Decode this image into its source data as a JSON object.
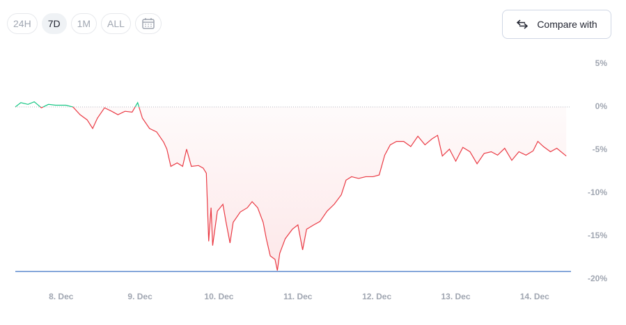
{
  "controls": {
    "ranges": [
      "24H",
      "7D",
      "1M",
      "ALL"
    ],
    "selected": 1,
    "compare": "Compare with"
  },
  "chart_data": {
    "type": "line",
    "x": [
      7.42,
      7.49,
      7.58,
      7.66,
      7.75,
      7.84,
      7.93,
      8.06,
      8.15,
      8.24,
      8.33,
      8.4,
      8.46,
      8.55,
      8.64,
      8.72,
      8.81,
      8.9,
      8.97,
      9.03,
      9.12,
      9.21,
      9.3,
      9.34,
      9.39,
      9.47,
      9.54,
      9.59,
      9.65,
      9.74,
      9.8,
      9.84,
      9.87,
      9.9,
      9.92,
      9.98,
      10.05,
      10.09,
      10.14,
      10.18,
      10.27,
      10.36,
      10.42,
      10.49,
      10.56,
      10.6,
      10.65,
      10.71,
      10.74,
      10.77,
      10.84,
      10.93,
      11.0,
      11.06,
      11.11,
      11.2,
      11.28,
      11.37,
      11.46,
      11.55,
      11.61,
      11.68,
      11.77,
      11.86,
      11.95,
      12.03,
      12.1,
      12.17,
      12.25,
      12.34,
      12.43,
      12.52,
      12.61,
      12.7,
      12.77,
      12.83,
      12.92,
      13.0,
      13.09,
      13.18,
      13.27,
      13.36,
      13.45,
      13.53,
      13.62,
      13.71,
      13.8,
      13.89,
      13.98,
      14.04,
      14.11,
      14.2,
      14.28,
      14.4
    ],
    "series": [
      {
        "values": [
          0,
          0.5,
          0.3,
          0.6,
          -0.1,
          0.3,
          0.2,
          0.2,
          0,
          -0.9,
          -1.5,
          -2.5,
          -1.3,
          -0.1,
          -0.5,
          -0.9,
          -0.5,
          -0.6,
          0.5,
          -1.3,
          -2.5,
          -2.9,
          -4.1,
          -4.9,
          -6.9,
          -6.5,
          -6.9,
          -4.9,
          -6.9,
          -6.8,
          -7.1,
          -7.7,
          -15.6,
          -11.7,
          -16.1,
          -12.1,
          -11.3,
          -13.4,
          -15.8,
          -13.4,
          -12.2,
          -11.7,
          -11.0,
          -11.7,
          -13.4,
          -15.3,
          -17.3,
          -17.7,
          -19.0,
          -17.0,
          -15.3,
          -14.2,
          -13.7,
          -16.6,
          -14.2,
          -13.7,
          -13.3,
          -12.1,
          -11.3,
          -10.2,
          -8.5,
          -8.1,
          -8.3,
          -8.1,
          -8.1,
          -7.9,
          -5.6,
          -4.4,
          -4.0,
          -4.0,
          -4.6,
          -3.4,
          -4.4,
          -3.7,
          -3.3,
          -5.7,
          -4.9,
          -6.3,
          -4.7,
          -5.2,
          -6.6,
          -5.4,
          -5.2,
          -5.6,
          -4.8,
          -6.2,
          -5.2,
          -5.6,
          -5.1,
          -4.0,
          -4.6,
          -5.2,
          -4.8,
          -5.7
        ],
        "color": "#ea3943",
        "color_up": "#16c784"
      }
    ],
    "xlim": [
      7.42,
      14.46
    ],
    "xticks": [
      {
        "value": 8,
        "label": "8. Dec"
      },
      {
        "value": 9,
        "label": "9. Dec"
      },
      {
        "value": 10,
        "label": "10. Dec"
      },
      {
        "value": 11,
        "label": "11. Dec"
      },
      {
        "value": 12,
        "label": "12. Dec"
      },
      {
        "value": 13,
        "label": "13. Dec"
      },
      {
        "value": 14,
        "label": "14. Dec"
      }
    ],
    "ylim": [
      -20,
      5
    ],
    "yticks": [
      {
        "value": 5,
        "label": "5%"
      },
      {
        "value": 0,
        "label": "0%"
      },
      {
        "value": -5,
        "label": "-5%"
      },
      {
        "value": -10,
        "label": "-10%"
      },
      {
        "value": -15,
        "label": "-15%"
      },
      {
        "value": -20,
        "label": "-20%"
      }
    ],
    "baseline": 0,
    "reference_line": {
      "value": -19.1,
      "color": "#3f74c4"
    }
  }
}
